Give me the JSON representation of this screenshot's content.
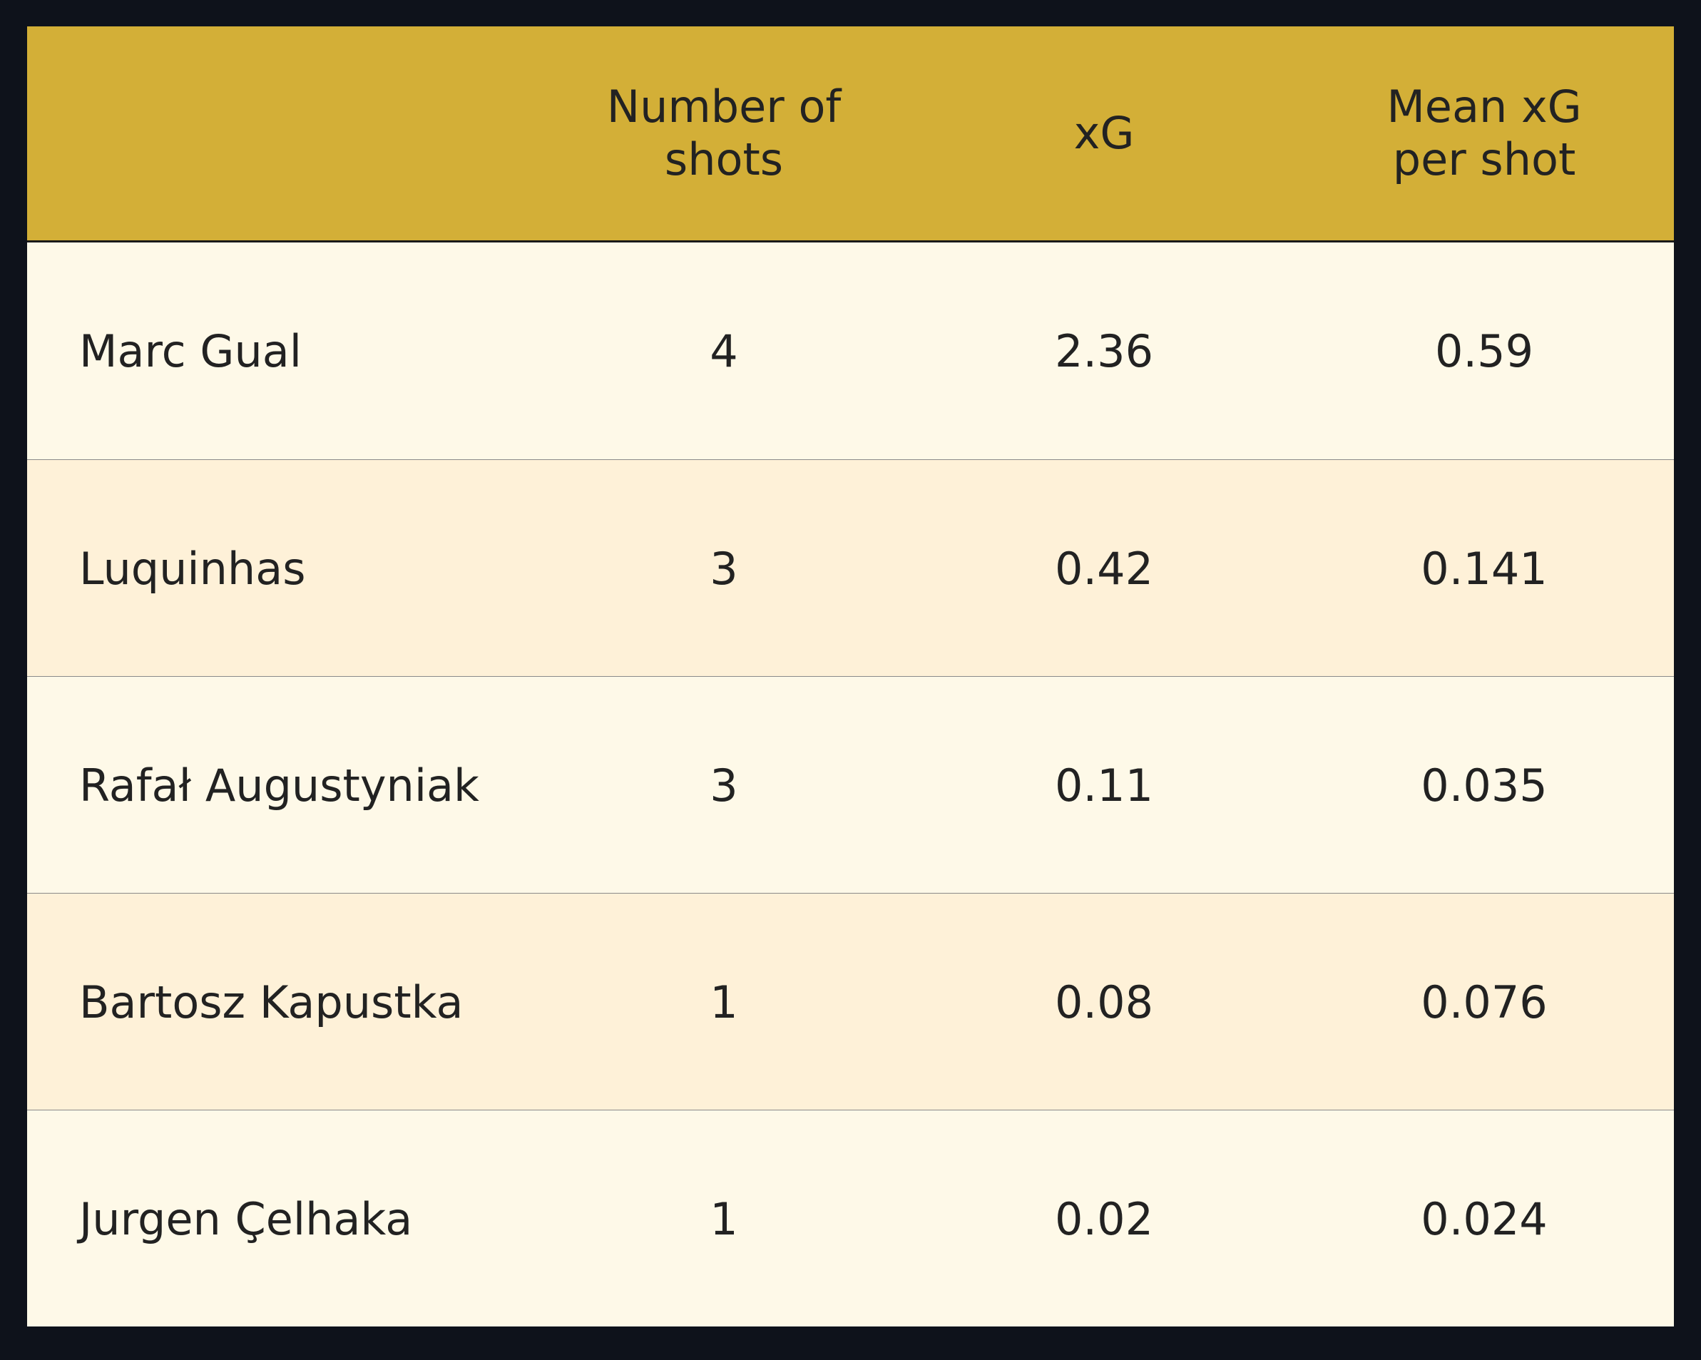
{
  "chart_data": {
    "type": "table",
    "columns": [
      "",
      "Number of\nshots",
      "xG",
      "Mean xG\nper shot"
    ],
    "rows": [
      {
        "player": "Marc Gual",
        "shots": "4",
        "xg": "2.36",
        "mean_xg": "0.59"
      },
      {
        "player": "Luquinhas",
        "shots": "3",
        "xg": "0.42",
        "mean_xg": "0.141"
      },
      {
        "player": "Rafał Augustyniak",
        "shots": "3",
        "xg": "0.11",
        "mean_xg": "0.035"
      },
      {
        "player": "Bartosz Kapustka",
        "shots": "1",
        "xg": "0.08",
        "mean_xg": "0.076"
      },
      {
        "player": "Jurgen Çelhaka",
        "shots": "1",
        "xg": "0.02",
        "mean_xg": "0.024"
      }
    ]
  },
  "colors": {
    "background": "#0e121b",
    "header": "#d3af37",
    "row_light": "#fef9e8",
    "row_alt": "#fef1d8",
    "text": "#222222"
  }
}
